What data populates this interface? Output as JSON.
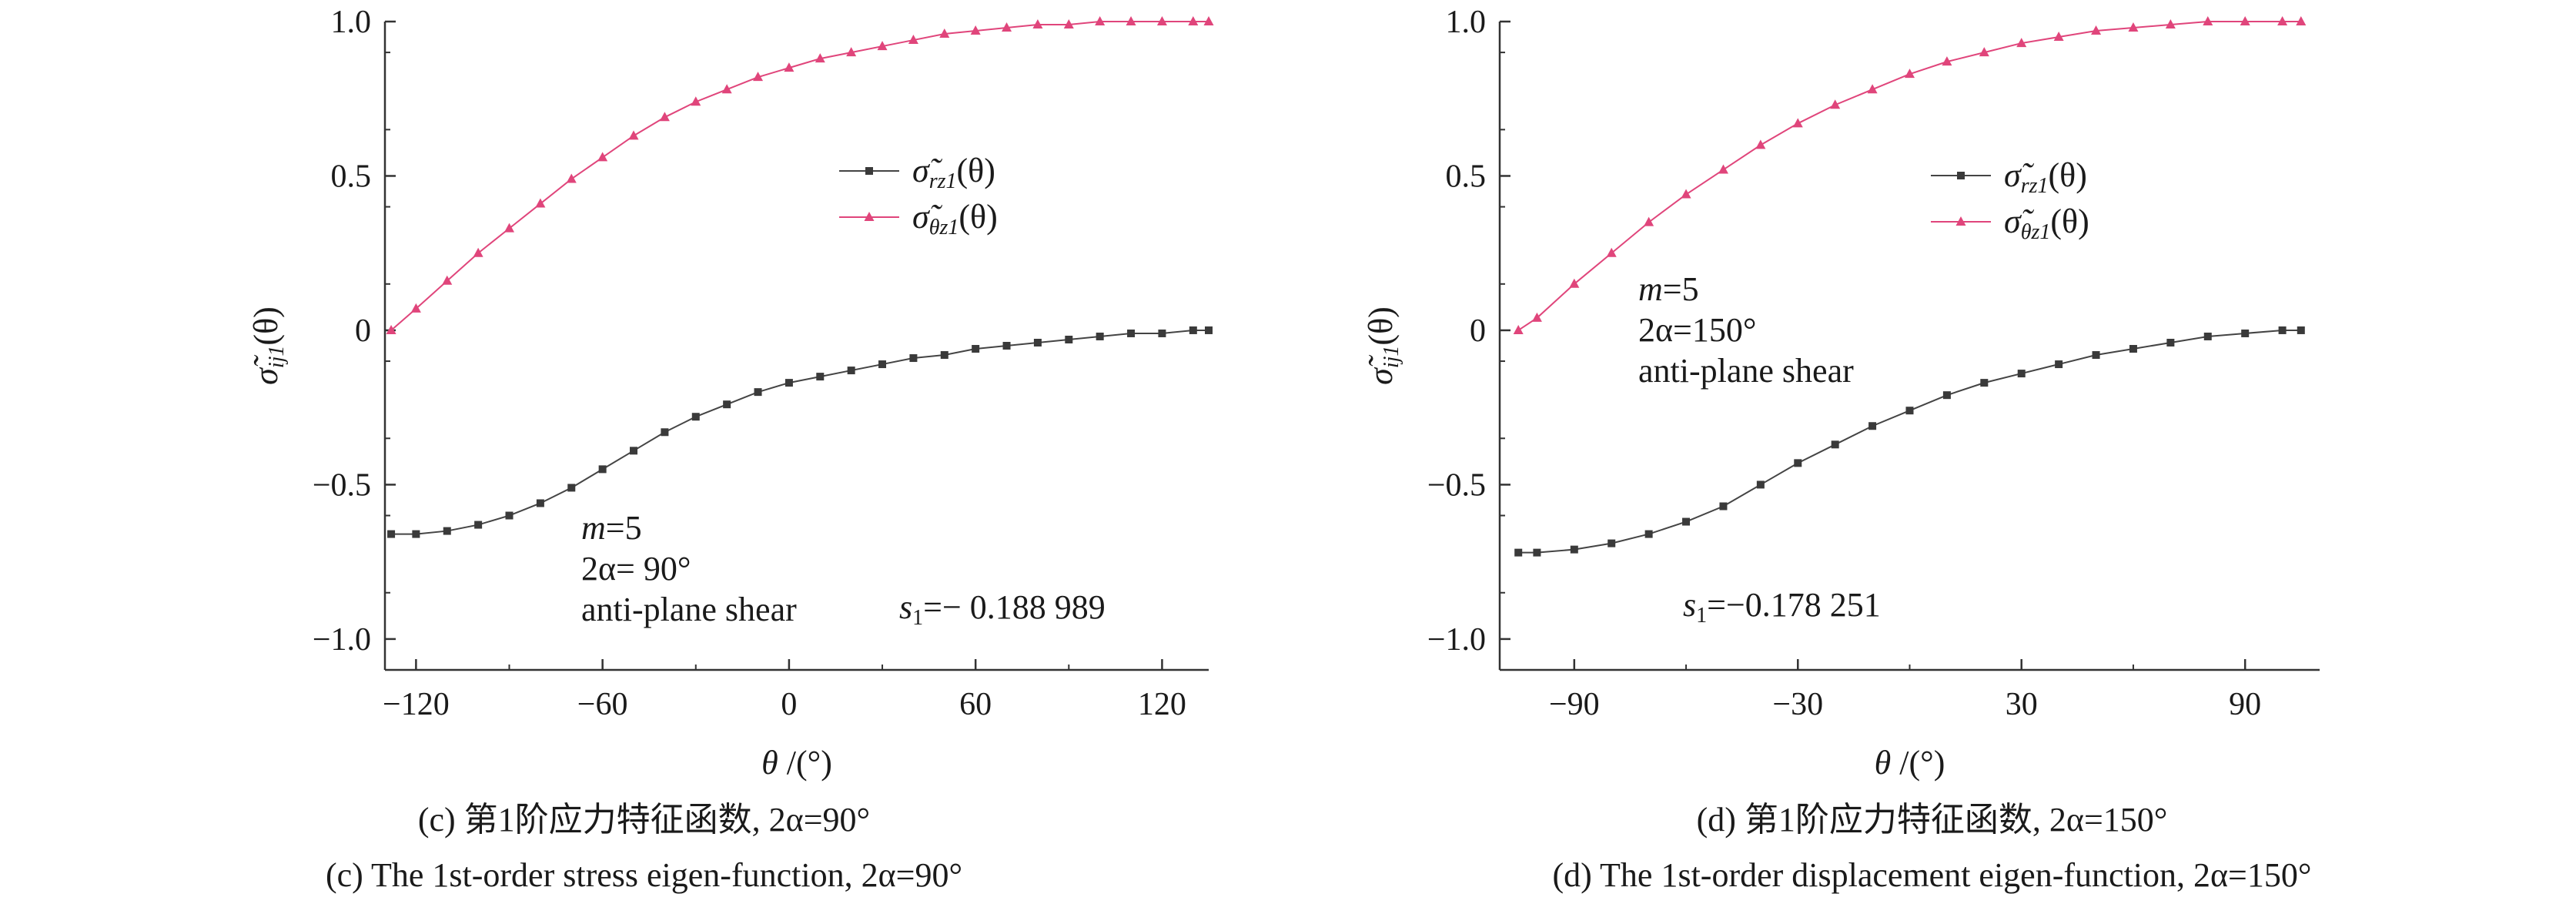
{
  "chart_data": [
    {
      "type": "line",
      "panel": "c",
      "xlabel_symbol": "θ",
      "xlabel_unit": "/(°)",
      "ylabel_base": "σ̃",
      "ylabel_sub": "ij1",
      "ylabel_arg": "(θ)",
      "xlim": [
        -130,
        135
      ],
      "ylim": [
        -1.1,
        1.0
      ],
      "xticks": [
        -120,
        -60,
        0,
        60,
        120
      ],
      "xtick_labels": [
        "−120",
        "−60",
        "0",
        "60",
        "120"
      ],
      "yticks": [
        1.0,
        0.5,
        0,
        -0.5,
        -1.0
      ],
      "ytick_labels": [
        "1.0",
        "0.5",
        "0",
        "−0.5",
        "−1.0"
      ],
      "grid": false,
      "legend_position": "center",
      "series": [
        {
          "legend_base": "σ̃",
          "legend_sub": "rz1",
          "legend_arg": "(θ)",
          "color": "#444444",
          "marker": "square",
          "x": [
            -128,
            -120,
            -110,
            -100,
            -90,
            -80,
            -70,
            -60,
            -50,
            -40,
            -30,
            -20,
            -10,
            0,
            10,
            20,
            30,
            40,
            50,
            60,
            70,
            80,
            90,
            100,
            110,
            120,
            130,
            135
          ],
          "y": [
            -0.66,
            -0.66,
            -0.65,
            -0.63,
            -0.6,
            -0.56,
            -0.51,
            -0.45,
            -0.39,
            -0.33,
            -0.28,
            -0.24,
            -0.2,
            -0.17,
            -0.15,
            -0.13,
            -0.11,
            -0.09,
            -0.08,
            -0.06,
            -0.05,
            -0.04,
            -0.03,
            -0.02,
            -0.01,
            -0.01,
            0.0,
            0.0
          ]
        },
        {
          "legend_base": "σ̃",
          "legend_sub": "θz1",
          "legend_arg": "(θ)",
          "color": "#e0457b",
          "marker": "triangle",
          "x": [
            -128,
            -120,
            -110,
            -100,
            -90,
            -80,
            -70,
            -60,
            -50,
            -40,
            -30,
            -20,
            -10,
            0,
            10,
            20,
            30,
            40,
            50,
            60,
            70,
            80,
            90,
            100,
            110,
            120,
            130,
            135
          ],
          "y": [
            0.0,
            0.07,
            0.16,
            0.25,
            0.33,
            0.41,
            0.49,
            0.56,
            0.63,
            0.69,
            0.74,
            0.78,
            0.82,
            0.85,
            0.88,
            0.9,
            0.92,
            0.94,
            0.96,
            0.97,
            0.98,
            0.99,
            0.99,
            1.0,
            1.0,
            1.0,
            1.0,
            1.0
          ]
        }
      ],
      "annotations": {
        "m_text": "m",
        "m_value": "=5",
        "alpha_text": "2α= 90°",
        "shear_text": "anti-plane shear",
        "s_base": "s",
        "s_sub": "1",
        "s_value": "=− 0.188 989"
      }
    },
    {
      "type": "line",
      "panel": "d",
      "xlabel_symbol": "θ",
      "xlabel_unit": "/(°)",
      "ylabel_base": "σ̃",
      "ylabel_sub": "ij1",
      "ylabel_arg": "(θ)",
      "xlim": [
        -110,
        110
      ],
      "ylim": [
        -1.1,
        1.0
      ],
      "xticks": [
        -90,
        -30,
        30,
        90
      ],
      "xtick_labels": [
        "−90",
        "−30",
        "30",
        "90"
      ],
      "yticks": [
        1.0,
        0.5,
        0,
        -0.5,
        -1.0
      ],
      "ytick_labels": [
        "1.0",
        "0.5",
        "0",
        "−0.5",
        "−1.0"
      ],
      "grid": false,
      "legend_position": "top-right",
      "series": [
        {
          "legend_base": "σ̃",
          "legend_sub": "rz1",
          "legend_arg": "(θ)",
          "color": "#444444",
          "marker": "square",
          "x": [
            -105,
            -100,
            -90,
            -80,
            -70,
            -60,
            -50,
            -40,
            -30,
            -20,
            -10,
            0,
            10,
            20,
            30,
            40,
            50,
            60,
            70,
            80,
            90,
            100,
            105
          ],
          "y": [
            -0.72,
            -0.72,
            -0.71,
            -0.69,
            -0.66,
            -0.62,
            -0.57,
            -0.5,
            -0.43,
            -0.37,
            -0.31,
            -0.26,
            -0.21,
            -0.17,
            -0.14,
            -0.11,
            -0.08,
            -0.06,
            -0.04,
            -0.02,
            -0.01,
            0.0,
            0.0
          ]
        },
        {
          "legend_base": "σ̃",
          "legend_sub": "θz1",
          "legend_arg": "(θ)",
          "color": "#e0457b",
          "marker": "triangle",
          "x": [
            -105,
            -100,
            -90,
            -80,
            -70,
            -60,
            -50,
            -40,
            -30,
            -20,
            -10,
            0,
            10,
            20,
            30,
            40,
            50,
            60,
            70,
            80,
            90,
            100,
            105
          ],
          "y": [
            0.0,
            0.04,
            0.15,
            0.25,
            0.35,
            0.44,
            0.52,
            0.6,
            0.67,
            0.73,
            0.78,
            0.83,
            0.87,
            0.9,
            0.93,
            0.95,
            0.97,
            0.98,
            0.99,
            1.0,
            1.0,
            1.0,
            1.0
          ]
        }
      ],
      "annotations": {
        "m_text": "m",
        "m_value": "=5",
        "alpha_text": "2α=150°",
        "shear_text": "anti-plane shear",
        "s_base": "s",
        "s_sub": "1",
        "s_value": "=−0.178 251"
      }
    }
  ],
  "captions": {
    "c_zh": "(c) 第1阶应力特征函数, 2α=90°",
    "c_en": "(c) The 1st-order stress eigen-function, 2α=90°",
    "d_zh": "(d) 第1阶应力特征函数, 2α=150°",
    "d_en": "(d) The 1st-order displacement eigen-function, 2α=150°"
  }
}
